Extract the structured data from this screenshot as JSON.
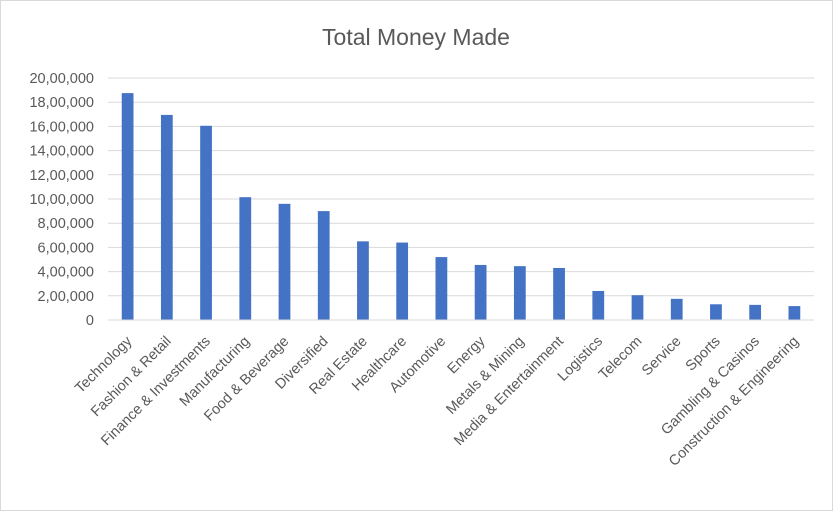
{
  "chart_data": {
    "type": "bar",
    "title": "Total Money Made",
    "xlabel": "",
    "ylabel": "",
    "categories": [
      "Technology",
      "Fashion & Retail",
      "Finance & Investments",
      "Manufacturing",
      "Food & Beverage",
      "Diversified",
      "Real Estate",
      "Healthcare",
      "Automotive",
      "Energy",
      "Metals & Mining",
      "Media & Entertainment",
      "Logistics",
      "Telecom",
      "Service",
      "Sports",
      "Gambling & Casinos",
      "Construction & Engineering"
    ],
    "values": [
      1875000,
      1695000,
      1605000,
      1015000,
      960000,
      900000,
      650000,
      640000,
      520000,
      455000,
      445000,
      430000,
      240000,
      205000,
      175000,
      130000,
      125000,
      115000
    ],
    "ylim": [
      0,
      2000000
    ],
    "yticks": [
      0,
      200000,
      400000,
      600000,
      800000,
      1000000,
      1200000,
      1400000,
      1600000,
      1800000,
      2000000
    ],
    "ytick_labels": [
      "0",
      "2,00,000",
      "4,00,000",
      "6,00,000",
      "8,00,000",
      "10,00,000",
      "12,00,000",
      "14,00,000",
      "16,00,000",
      "18,00,000",
      "20,00,000"
    ],
    "grid": true,
    "legend": "none",
    "bar_color": "#4472c4",
    "grid_color": "#d9d9d9"
  }
}
